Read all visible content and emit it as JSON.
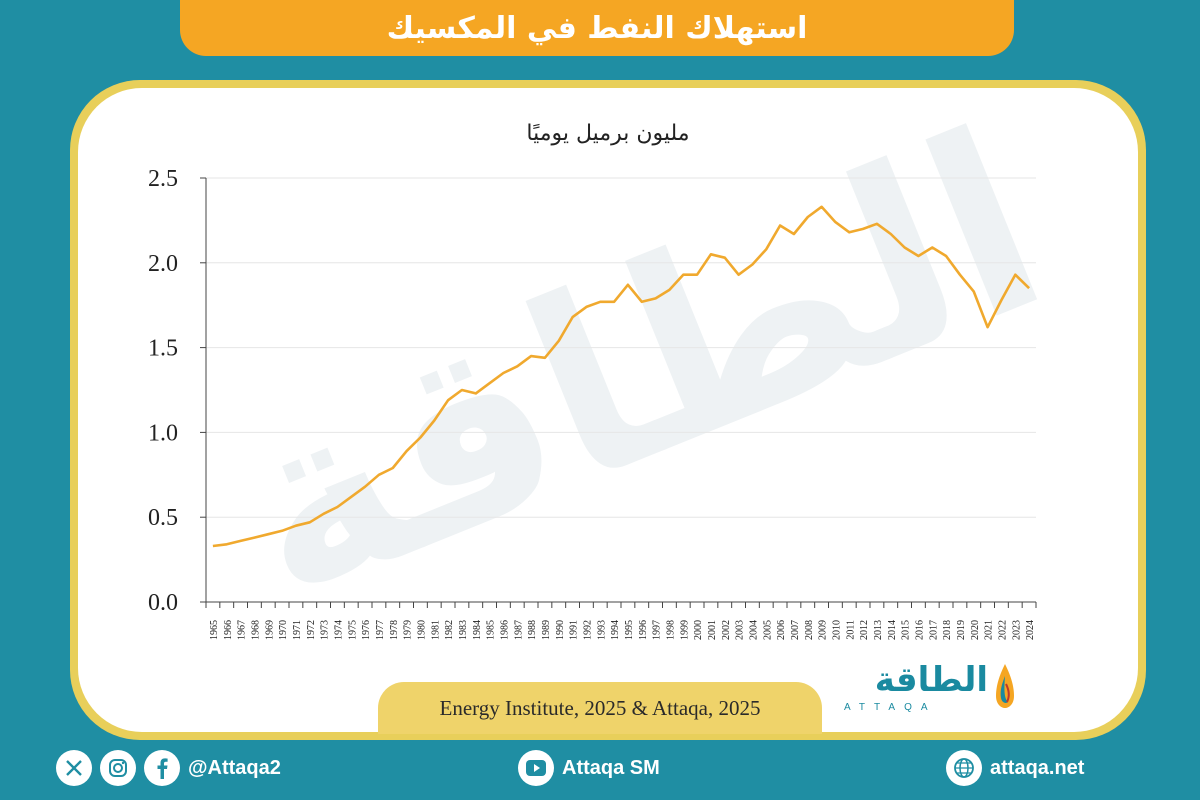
{
  "header": {
    "title": "استهلاك النفط في المكسيك"
  },
  "source": "Energy Institute, 2025 & Attaqa, 2025",
  "logo": {
    "arabic": "الطاقة",
    "english": "ATTAQA"
  },
  "watermark": "الطاقة",
  "footer": {
    "social_handle": "@Attaqa2",
    "youtube": "Attaqa SM",
    "website": "attaqa.net"
  },
  "colors": {
    "line": "#f0a92e",
    "background": "#1f8ea3",
    "banner": "#f5a623",
    "card_border": "#e8cf5a"
  },
  "chart_data": {
    "type": "line",
    "title": "مليون برميل يوميًا",
    "x": [
      1965,
      1966,
      1967,
      1968,
      1969,
      1970,
      1971,
      1972,
      1973,
      1974,
      1975,
      1976,
      1977,
      1978,
      1979,
      1980,
      1981,
      1982,
      1983,
      1984,
      1985,
      1986,
      1987,
      1988,
      1989,
      1990,
      1991,
      1992,
      1993,
      1994,
      1995,
      1996,
      1997,
      1998,
      1999,
      2000,
      2001,
      2002,
      2003,
      2004,
      2005,
      2006,
      2007,
      2008,
      2009,
      2010,
      2011,
      2012,
      2013,
      2014,
      2015,
      2016,
      2017,
      2018,
      2019,
      2020,
      2021,
      2022,
      2023,
      2024
    ],
    "series": [
      {
        "values": [
          0.33,
          0.34,
          0.36,
          0.38,
          0.4,
          0.42,
          0.45,
          0.47,
          0.52,
          0.56,
          0.62,
          0.68,
          0.75,
          0.79,
          0.89,
          0.97,
          1.07,
          1.19,
          1.25,
          1.23,
          1.29,
          1.35,
          1.39,
          1.45,
          1.44,
          1.54,
          1.68,
          1.74,
          1.77,
          1.77,
          1.87,
          1.77,
          1.79,
          1.84,
          1.93,
          1.93,
          2.05,
          2.03,
          1.93,
          1.99,
          2.08,
          2.22,
          2.17,
          2.27,
          2.33,
          2.24,
          2.18,
          2.2,
          2.23,
          2.17,
          2.09,
          2.04,
          2.09,
          2.04,
          1.93,
          1.83,
          1.62,
          1.78,
          1.93,
          1.85
        ]
      }
    ],
    "ylim": [
      0,
      2.5
    ],
    "yticks": [
      "0.0",
      "0.5",
      "1.0",
      "1.5",
      "2.0",
      "2.5"
    ],
    "grid": true,
    "legend": "none"
  }
}
